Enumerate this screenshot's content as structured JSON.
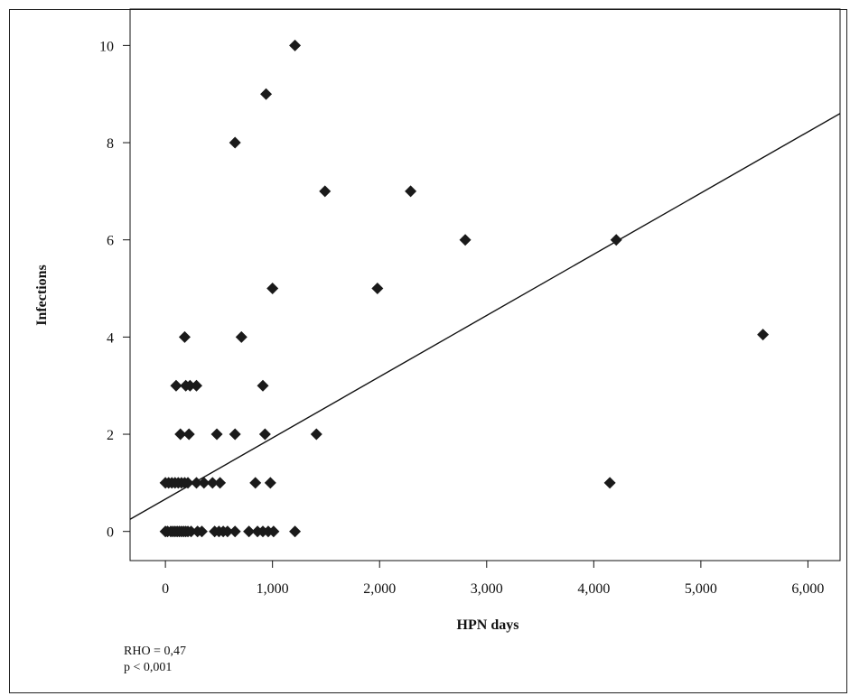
{
  "chart_data": {
    "type": "scatter",
    "xlabel": "HPN days",
    "ylabel": "Infections",
    "xlim": [
      -330,
      6300
    ],
    "ylim": [
      -0.6,
      10.75
    ],
    "x_ticks": [
      0,
      1000,
      2000,
      3000,
      4000,
      5000,
      6000
    ],
    "x_tick_labels": [
      "0",
      "1,000",
      "2,000",
      "3,000",
      "4,000",
      "5,000",
      "6,000"
    ],
    "y_ticks": [
      0,
      2,
      4,
      6,
      8,
      10
    ],
    "y_tick_labels": [
      "0",
      "2",
      "4",
      "6",
      "8",
      "10"
    ],
    "grid": false,
    "marker": "diamond",
    "marker_color": "#1a1a1a",
    "points": [
      [
        0,
        0
      ],
      [
        20,
        0
      ],
      [
        50,
        0
      ],
      [
        70,
        0
      ],
      [
        90,
        0
      ],
      [
        110,
        0
      ],
      [
        130,
        0
      ],
      [
        150,
        0
      ],
      [
        170,
        0
      ],
      [
        190,
        0
      ],
      [
        210,
        0
      ],
      [
        240,
        0
      ],
      [
        300,
        0
      ],
      [
        340,
        0
      ],
      [
        460,
        0
      ],
      [
        500,
        0
      ],
      [
        540,
        0
      ],
      [
        580,
        0
      ],
      [
        650,
        0
      ],
      [
        780,
        0
      ],
      [
        860,
        0
      ],
      [
        910,
        0
      ],
      [
        960,
        0
      ],
      [
        1010,
        0
      ],
      [
        1210,
        0
      ],
      [
        0,
        1
      ],
      [
        30,
        1
      ],
      [
        60,
        1
      ],
      [
        90,
        1
      ],
      [
        120,
        1
      ],
      [
        150,
        1
      ],
      [
        180,
        1
      ],
      [
        210,
        1
      ],
      [
        290,
        1
      ],
      [
        360,
        1
      ],
      [
        440,
        1
      ],
      [
        510,
        1
      ],
      [
        840,
        1
      ],
      [
        980,
        1
      ],
      [
        4150,
        1
      ],
      [
        140,
        2
      ],
      [
        220,
        2
      ],
      [
        480,
        2
      ],
      [
        650,
        2
      ],
      [
        930,
        2
      ],
      [
        1410,
        2
      ],
      [
        100,
        3
      ],
      [
        190,
        3
      ],
      [
        230,
        3
      ],
      [
        290,
        3
      ],
      [
        910,
        3
      ],
      [
        180,
        4
      ],
      [
        710,
        4
      ],
      [
        5580,
        4.05
      ],
      [
        1000,
        5
      ],
      [
        1980,
        5
      ],
      [
        1490,
        7
      ],
      [
        2290,
        7
      ],
      [
        2800,
        6
      ],
      [
        4210,
        6
      ],
      [
        650,
        8
      ],
      [
        940,
        9
      ],
      [
        1210,
        10
      ]
    ],
    "regression_line": {
      "x": [
        -330,
        6300
      ],
      "y": [
        0.25,
        8.6
      ]
    }
  },
  "stats": {
    "rho": "RHO = 0,47",
    "p": "p < 0,001"
  }
}
